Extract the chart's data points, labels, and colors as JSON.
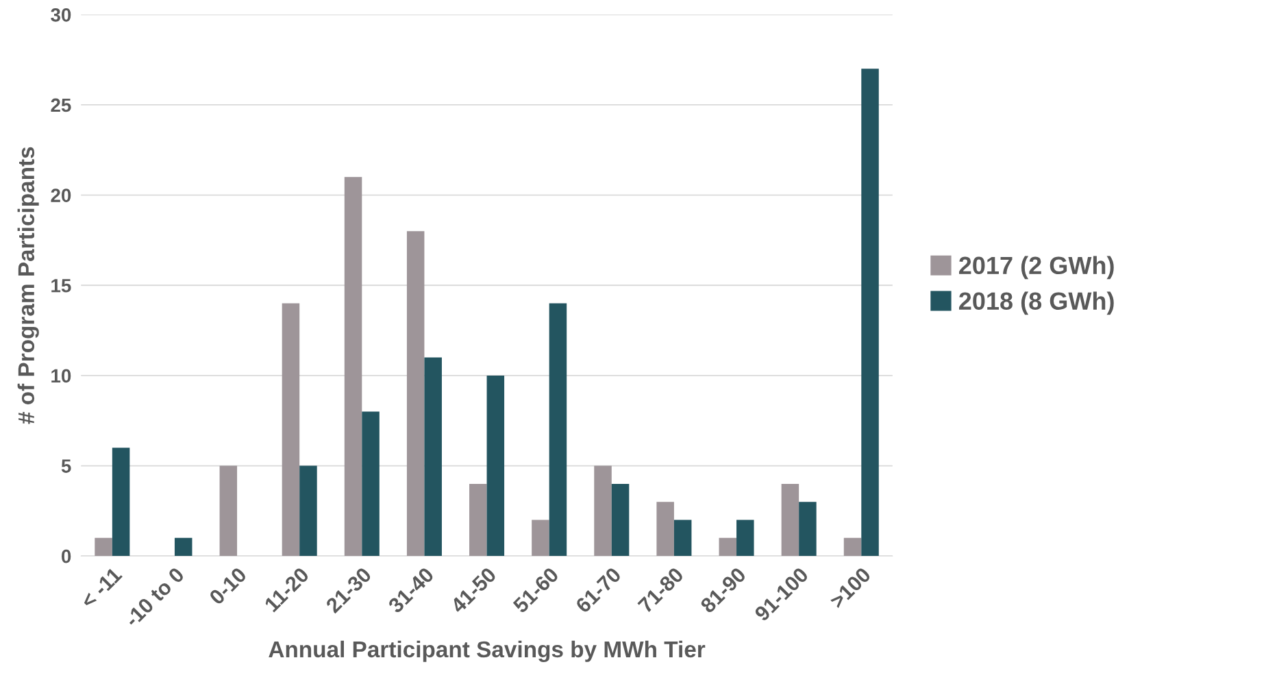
{
  "chart_data": {
    "type": "bar",
    "xlabel": "Annual Participant Savings by MWh Tier",
    "ylabel": "# of Program Participants",
    "categories": [
      "< -11",
      "-10 to 0",
      "0-10",
      "11-20",
      "21-30",
      "31-40",
      "41-50",
      "51-60",
      "61-70",
      "71-80",
      "81-90",
      "91-100",
      ">100"
    ],
    "series": [
      {
        "name": "2017 (2 GWh)",
        "color": "#9e9599",
        "values": [
          1,
          0,
          5,
          14,
          21,
          18,
          4,
          2,
          5,
          3,
          1,
          4,
          1
        ]
      },
      {
        "name": "2018 (8 GWh)",
        "color": "#235560",
        "values": [
          6,
          1,
          0,
          5,
          8,
          11,
          10,
          14,
          4,
          2,
          2,
          3,
          27
        ]
      }
    ],
    "ylim": [
      0,
      30
    ],
    "yticks": [
      0,
      5,
      10,
      15,
      20,
      25,
      30
    ],
    "grid": "y",
    "legend": "right"
  }
}
